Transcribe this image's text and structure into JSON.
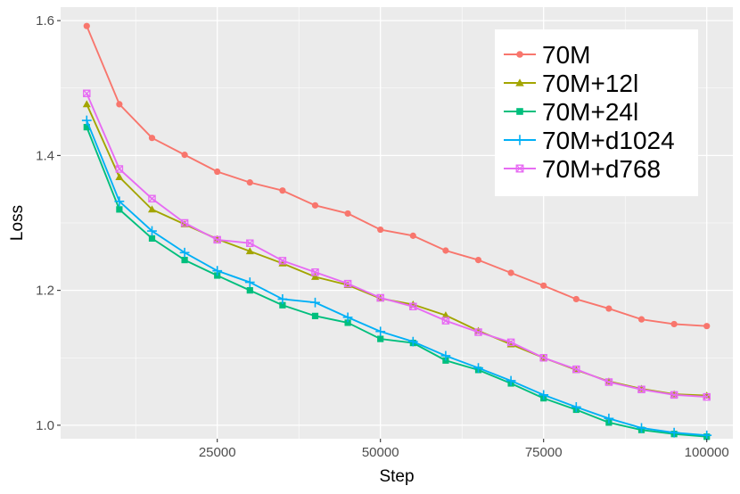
{
  "chart_data": {
    "type": "line",
    "title": "",
    "xlabel": "Step",
    "ylabel": "Loss",
    "xlim": [
      1000,
      104000
    ],
    "ylim": [
      0.98,
      1.62
    ],
    "x_ticks": [
      25000,
      50000,
      75000,
      100000
    ],
    "x_tick_labels": [
      "25000",
      "50000",
      "75000",
      "100000"
    ],
    "y_ticks": [
      1.0,
      1.2,
      1.4,
      1.6
    ],
    "y_tick_labels": [
      "1.0",
      "1.2",
      "1.4",
      "1.6"
    ],
    "grid": true,
    "legend_position": "top-right",
    "x": [
      5000,
      10000,
      15000,
      20000,
      25000,
      30000,
      35000,
      40000,
      45000,
      50000,
      55000,
      60000,
      65000,
      70000,
      75000,
      80000,
      85000,
      90000,
      95000,
      100000
    ],
    "series": [
      {
        "name": "70M",
        "color": "#F8766D",
        "marker": "circle",
        "values": [
          1.592,
          1.476,
          1.426,
          1.401,
          1.376,
          1.36,
          1.348,
          1.326,
          1.314,
          1.29,
          1.281,
          1.259,
          1.245,
          1.226,
          1.207,
          1.187,
          1.173,
          1.157,
          1.15,
          1.147
        ]
      },
      {
        "name": "70M+12l",
        "color": "#A3A500",
        "marker": "triangle",
        "values": [
          1.476,
          1.368,
          1.32,
          1.298,
          1.276,
          1.258,
          1.24,
          1.22,
          1.208,
          1.188,
          1.179,
          1.163,
          1.14,
          1.12,
          1.1,
          1.082,
          1.065,
          1.054,
          1.046,
          1.044
        ]
      },
      {
        "name": "70M+24l",
        "color": "#00BF7D",
        "marker": "square",
        "values": [
          1.442,
          1.32,
          1.277,
          1.245,
          1.222,
          1.2,
          1.178,
          1.162,
          1.152,
          1.128,
          1.122,
          1.096,
          1.082,
          1.062,
          1.04,
          1.023,
          1.004,
          0.993,
          0.987,
          0.983
        ]
      },
      {
        "name": "70M+d1024",
        "color": "#00B0F6",
        "marker": "plus",
        "values": [
          1.452,
          1.332,
          1.288,
          1.256,
          1.229,
          1.212,
          1.187,
          1.182,
          1.16,
          1.139,
          1.124,
          1.103,
          1.085,
          1.066,
          1.045,
          1.027,
          1.01,
          0.996,
          0.989,
          0.985
        ]
      },
      {
        "name": "70M+d768",
        "color": "#E76BF3",
        "marker": "boxx",
        "values": [
          1.492,
          1.38,
          1.336,
          1.3,
          1.275,
          1.27,
          1.244,
          1.227,
          1.21,
          1.189,
          1.176,
          1.155,
          1.138,
          1.123,
          1.1,
          1.083,
          1.064,
          1.053,
          1.045,
          1.042
        ]
      }
    ]
  }
}
